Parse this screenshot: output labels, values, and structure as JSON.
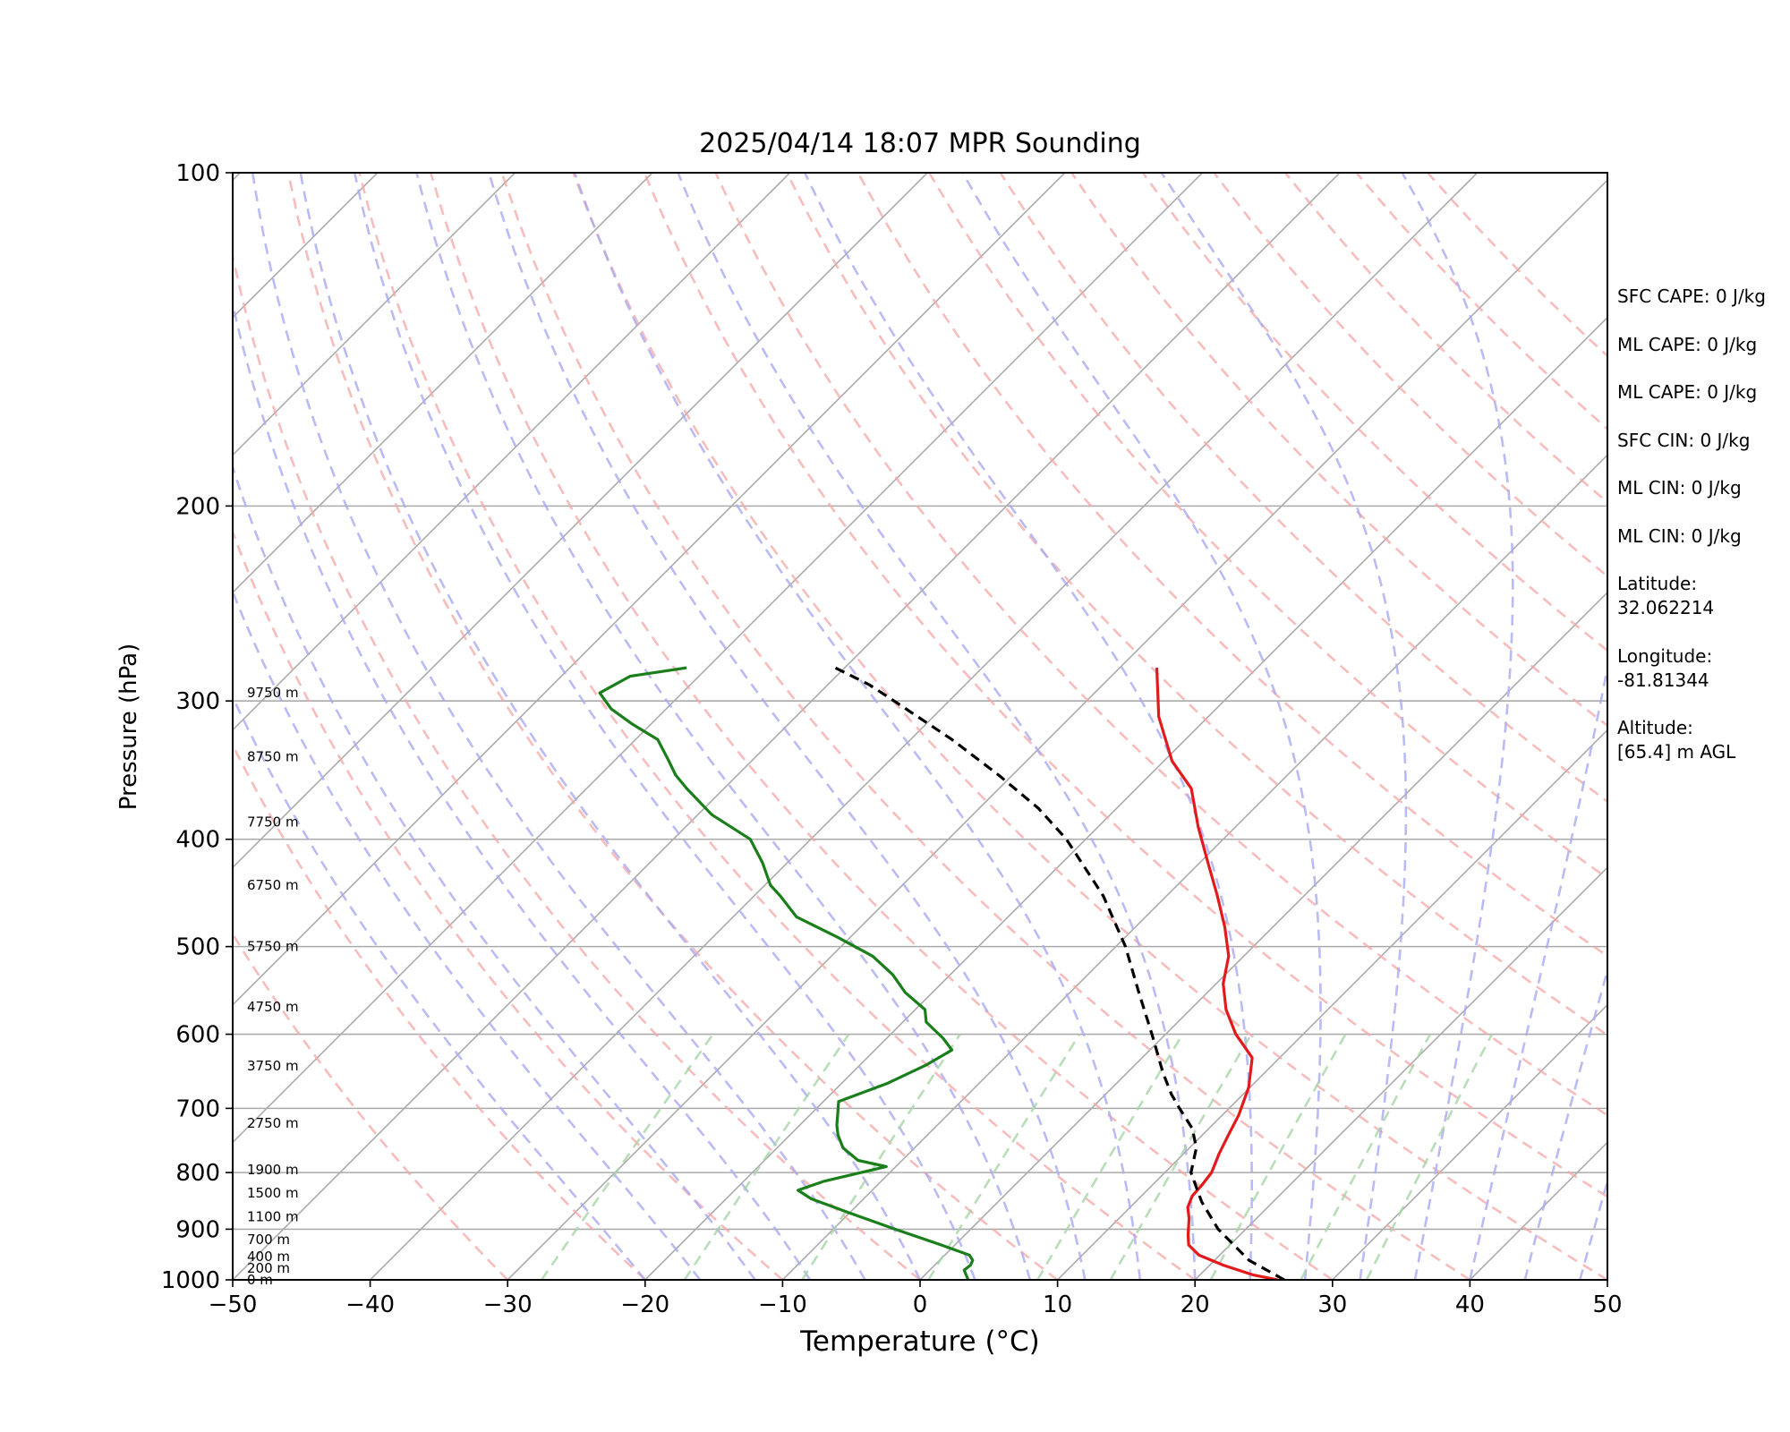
{
  "chart_data": {
    "type": "line",
    "title": "2025/04/14 18:07 MPR Sounding",
    "xlabel": "Temperature (°C)",
    "ylabel": "Pressure (hPa)",
    "xlim": [
      -50,
      50
    ],
    "ylim": [
      1000,
      100
    ],
    "y_scale": "log",
    "x_ticks": [
      "−50",
      "−40",
      "−30",
      "−20",
      "−10",
      "0",
      "10",
      "20",
      "30",
      "40",
      "50"
    ],
    "y_ticks": [
      "100",
      "200",
      "300",
      "400",
      "500",
      "600",
      "700",
      "800",
      "900",
      "1000"
    ],
    "grid": true,
    "skew": "45-degree skew-T",
    "background_lines": {
      "isotherms": "gray solid",
      "dry_adiabats": "pink dashed",
      "moist_adiabats": "blue dashed",
      "mixing_ratio_lines": "green dashed"
    },
    "height_labels": [
      {
        "p": 1000,
        "label": "0 m"
      },
      {
        "p": 976,
        "label": "200 m"
      },
      {
        "p": 953,
        "label": "400 m"
      },
      {
        "p": 920,
        "label": "700 m"
      },
      {
        "p": 877,
        "label": "1100 m"
      },
      {
        "p": 835,
        "label": "1500 m"
      },
      {
        "p": 795,
        "label": "1900 m"
      },
      {
        "p": 722,
        "label": "2750 m"
      },
      {
        "p": 641,
        "label": "3750 m"
      },
      {
        "p": 567,
        "label": "4750 m"
      },
      {
        "p": 500,
        "label": "5750 m"
      },
      {
        "p": 440,
        "label": "6750 m"
      },
      {
        "p": 386,
        "label": "7750 m"
      },
      {
        "p": 337,
        "label": "8750 m"
      },
      {
        "p": 295,
        "label": "9750 m"
      }
    ],
    "series": [
      {
        "name": "Temperature",
        "color": "#e31a1c",
        "style": "solid",
        "points": [
          [
            26.0,
            1000
          ],
          [
            23.9,
            990
          ],
          [
            21.0,
            970
          ],
          [
            18.5,
            950
          ],
          [
            17.0,
            930
          ],
          [
            16.2,
            910
          ],
          [
            15.1,
            880
          ],
          [
            14.2,
            860
          ],
          [
            13.7,
            840
          ],
          [
            13.6,
            820
          ],
          [
            13.4,
            800
          ],
          [
            12.6,
            770
          ],
          [
            11.9,
            740
          ],
          [
            11.2,
            710
          ],
          [
            9.9,
            670
          ],
          [
            8.0,
            630
          ],
          [
            5.1,
            600
          ],
          [
            2.6,
            570
          ],
          [
            0.5,
            540
          ],
          [
            -1.1,
            510
          ],
          [
            -3.5,
            480
          ],
          [
            -6.3,
            450
          ],
          [
            -9.4,
            420
          ],
          [
            -12.7,
            390
          ],
          [
            -16.0,
            360
          ],
          [
            -19.4,
            340
          ],
          [
            -23.6,
            310
          ],
          [
            -27.3,
            280
          ]
        ]
      },
      {
        "name": "Dewpoint",
        "color": "#1a7f1a",
        "style": "solid",
        "points": [
          [
            3.5,
            1000
          ],
          [
            3.0,
            990
          ],
          [
            2.5,
            980
          ],
          [
            2.6,
            970
          ],
          [
            2.4,
            960
          ],
          [
            1.8,
            950
          ],
          [
            -1.0,
            930
          ],
          [
            -5.5,
            900
          ],
          [
            -10.0,
            870
          ],
          [
            -11.5,
            860
          ],
          [
            -13.8,
            845
          ],
          [
            -15.4,
            830
          ],
          [
            -14.2,
            815
          ],
          [
            -10.7,
            790
          ],
          [
            -13.2,
            780
          ],
          [
            -15.2,
            760
          ],
          [
            -16.5,
            740
          ],
          [
            -17.3,
            725
          ],
          [
            -18.2,
            705
          ],
          [
            -18.9,
            690
          ],
          [
            -16.7,
            665
          ],
          [
            -15.2,
            640
          ],
          [
            -14.4,
            620
          ],
          [
            -15.9,
            605
          ],
          [
            -18.3,
            585
          ],
          [
            -19.3,
            570
          ],
          [
            -22.0,
            550
          ],
          [
            -24.2,
            530
          ],
          [
            -27.0,
            510
          ],
          [
            -31.0,
            490
          ],
          [
            -35.4,
            470
          ],
          [
            -38.1,
            450
          ],
          [
            -39.6,
            440
          ],
          [
            -41.8,
            420
          ],
          [
            -44.4,
            400
          ],
          [
            -49.0,
            380
          ],
          [
            -52.7,
            360
          ],
          [
            -54.5,
            350
          ],
          [
            -56.0,
            340
          ],
          [
            -58.4,
            325
          ],
          [
            -61.3,
            315
          ],
          [
            -64.0,
            305
          ],
          [
            -66.0,
            295
          ],
          [
            -65.0,
            285
          ],
          [
            -61.5,
            280
          ]
        ]
      },
      {
        "name": "Parcel",
        "color": "#000000",
        "style": "dashed",
        "points": [
          [
            26.5,
            1000
          ],
          [
            22.5,
            960
          ],
          [
            18.0,
            900
          ],
          [
            14.8,
            850
          ],
          [
            11.9,
            800
          ],
          [
            10.5,
            760
          ],
          [
            8.8,
            730
          ],
          [
            6.4,
            700
          ],
          [
            4.8,
            680
          ],
          [
            2.6,
            650
          ],
          [
            -1.0,
            600
          ],
          [
            -5.0,
            550
          ],
          [
            -9.3,
            500
          ],
          [
            -14.6,
            450
          ],
          [
            -21.4,
            400
          ],
          [
            -25.7,
            375
          ],
          [
            -31.0,
            350
          ],
          [
            -37.0,
            325
          ],
          [
            -44.0,
            300
          ],
          [
            -47.0,
            290
          ],
          [
            -50.7,
            280
          ]
        ]
      }
    ]
  },
  "stats": {
    "sfc_cape": "SFC CAPE: 0 J/kg",
    "ml_cape_1": "ML CAPE: 0 J/kg",
    "ml_cape_2": "ML CAPE: 0 J/kg",
    "sfc_cin": "SFC CIN: 0 J/kg",
    "ml_cin_1": "ML CIN: 0 J/kg",
    "ml_cin_2": "ML CIN: 0 J/kg",
    "latitude_label": "Latitude:",
    "latitude_value": "32.062214",
    "longitude_label": "Longitude:",
    "longitude_value": "-81.81344",
    "altitude_label": "Altitude:",
    "altitude_value": "[65.4] m AGL"
  }
}
